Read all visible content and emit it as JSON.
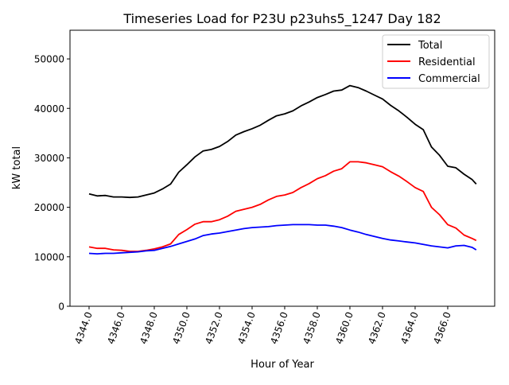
{
  "chart_data": {
    "type": "line",
    "title": "Timeseries Load for P23U p23uhs5_1247  Day 182",
    "xlabel": "Hour of Year",
    "ylabel": "kW total",
    "xlim": [
      4342.83,
      4368.88
    ],
    "ylim": [
      0,
      55800
    ],
    "xticks": [
      4344,
      4346,
      4348,
      4350,
      4352,
      4354,
      4356,
      4358,
      4360,
      4362,
      4364,
      4366
    ],
    "xtick_labels": [
      "4344.0",
      "4346.0",
      "4348.0",
      "4350.0",
      "4352.0",
      "4354.0",
      "4356.0",
      "4358.0",
      "4360.0",
      "4362.0",
      "4364.0",
      "4366.0"
    ],
    "yticks": [
      0,
      10000,
      20000,
      30000,
      40000,
      50000
    ],
    "ytick_labels": [
      "0",
      "10000",
      "20000",
      "30000",
      "40000",
      "50000"
    ],
    "grid": false,
    "legend_position": "top-right",
    "x": [
      4344,
      4344.5,
      4345,
      4345.5,
      4346,
      4346.5,
      4347,
      4347.5,
      4348,
      4348.5,
      4349,
      4349.5,
      4350,
      4350.5,
      4351,
      4351.5,
      4352,
      4352.5,
      4353,
      4353.5,
      4354,
      4354.5,
      4355,
      4355.5,
      4356,
      4356.5,
      4357,
      4357.5,
      4358,
      4358.5,
      4359,
      4359.5,
      4360,
      4360.5,
      4361,
      4361.5,
      4362,
      4362.5,
      4363,
      4363.5,
      4364,
      4364.5,
      4365,
      4365.5,
      4366,
      4366.5,
      4367,
      4367.5,
      4367.75
    ],
    "series": [
      {
        "name": "Total",
        "color": "#000000",
        "values": [
          22700,
          22300,
          22400,
          22100,
          22100,
          22000,
          22100,
          22500,
          22900,
          23700,
          24700,
          27100,
          28600,
          30200,
          31400,
          31700,
          32300,
          33300,
          34600,
          35300,
          35900,
          36600,
          37600,
          38500,
          38900,
          39500,
          40500,
          41300,
          42200,
          42800,
          43500,
          43700,
          44600,
          44200,
          43500,
          42700,
          41900,
          40600,
          39500,
          38200,
          36800,
          35700,
          32200,
          30500,
          28300,
          28000,
          26700,
          25600,
          24700
        ]
      },
      {
        "name": "Residential",
        "color": "#ff0000",
        "values": [
          12000,
          11700,
          11700,
          11400,
          11300,
          11100,
          11100,
          11300,
          11600,
          12000,
          12600,
          14500,
          15500,
          16600,
          17100,
          17100,
          17500,
          18200,
          19200,
          19600,
          20000,
          20600,
          21500,
          22200,
          22500,
          23000,
          24000,
          24800,
          25800,
          26400,
          27300,
          27800,
          29200,
          29200,
          29000,
          28600,
          28200,
          27200,
          26300,
          25200,
          24000,
          23200,
          20000,
          18500,
          16500,
          15800,
          14400,
          13700,
          13300
        ]
      },
      {
        "name": "Commercial",
        "color": "#0000ff",
        "values": [
          10700,
          10600,
          10700,
          10700,
          10800,
          10900,
          11000,
          11200,
          11300,
          11700,
          12100,
          12600,
          13100,
          13600,
          14300,
          14600,
          14800,
          15100,
          15400,
          15700,
          15900,
          16000,
          16100,
          16300,
          16400,
          16500,
          16500,
          16500,
          16400,
          16400,
          16200,
          15900,
          15400,
          15000,
          14500,
          14100,
          13700,
          13400,
          13200,
          13000,
          12800,
          12500,
          12200,
          12000,
          11800,
          12200,
          12300,
          11900,
          11400
        ]
      }
    ]
  }
}
